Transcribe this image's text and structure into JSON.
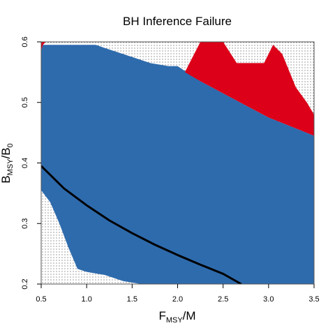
{
  "chart_data": {
    "type": "heatmap",
    "title": "BH Inference Failure",
    "xlabel": {
      "main": "F",
      "sub": "MSY",
      "tail": "/M"
    },
    "ylabel": {
      "main": "B",
      "sub": "MSY",
      "mid": "/B",
      "sub2": "0"
    },
    "xlim": [
      0.5,
      3.5
    ],
    "ylim": [
      0.2,
      0.6
    ],
    "xticks": [
      "0.5",
      "1.0",
      "1.5",
      "2.0",
      "2.5",
      "3.0",
      "3.5"
    ],
    "xtick_values": [
      0.5,
      1.0,
      1.5,
      2.0,
      2.5,
      3.0,
      3.5
    ],
    "yticks": [
      "0.2",
      "0.3",
      "0.4",
      "0.5",
      "0.6"
    ],
    "ytick_values": [
      0.2,
      0.3,
      0.4,
      0.5,
      0.6
    ],
    "grid": false,
    "colors": {
      "inference_failure_region": "#dc0019",
      "valid_region": "#2e6bad",
      "undefined_region_dots": "#000000",
      "curve": "#000000"
    },
    "regions": {
      "blue_upper_boundary": [
        [
          0.5,
          0.585
        ],
        [
          0.52,
          0.595
        ],
        [
          0.6,
          0.595
        ],
        [
          1.1,
          0.595
        ],
        [
          1.2,
          0.59
        ],
        [
          1.4,
          0.58
        ],
        [
          1.6,
          0.57
        ],
        [
          1.7,
          0.565
        ],
        [
          1.9,
          0.56
        ],
        [
          2.0,
          0.56
        ],
        [
          2.1,
          0.55
        ],
        [
          2.25,
          0.535
        ],
        [
          2.5,
          0.515
        ],
        [
          2.75,
          0.495
        ],
        [
          3.0,
          0.475
        ],
        [
          3.25,
          0.46
        ],
        [
          3.5,
          0.445
        ]
      ],
      "blue_lower_boundary": [
        [
          0.5,
          0.355
        ],
        [
          0.6,
          0.335
        ],
        [
          0.7,
          0.3
        ],
        [
          0.8,
          0.26
        ],
        [
          0.9,
          0.225
        ],
        [
          1.0,
          0.22
        ],
        [
          1.2,
          0.215
        ],
        [
          1.4,
          0.205
        ],
        [
          1.6,
          0.2
        ],
        [
          1.8,
          0.2
        ]
      ],
      "red_region_1": [
        [
          0.5,
          0.6
        ],
        [
          0.5,
          0.585
        ],
        [
          0.52,
          0.595
        ],
        [
          0.55,
          0.6
        ]
      ],
      "red_region_2": [
        [
          2.08,
          0.55
        ],
        [
          2.25,
          0.6
        ],
        [
          2.5,
          0.6
        ],
        [
          2.65,
          0.565
        ],
        [
          2.95,
          0.565
        ],
        [
          3.05,
          0.595
        ],
        [
          3.15,
          0.58
        ],
        [
          3.3,
          0.525
        ],
        [
          3.42,
          0.5
        ],
        [
          3.5,
          0.48
        ],
        [
          3.5,
          0.445
        ],
        [
          3.25,
          0.46
        ],
        [
          3.0,
          0.475
        ],
        [
          2.75,
          0.495
        ],
        [
          2.5,
          0.515
        ],
        [
          2.25,
          0.535
        ]
      ]
    },
    "curve": [
      [
        0.5,
        0.395
      ],
      [
        0.75,
        0.358
      ],
      [
        1.0,
        0.33
      ],
      [
        1.25,
        0.305
      ],
      [
        1.5,
        0.284
      ],
      [
        1.75,
        0.265
      ],
      [
        2.0,
        0.248
      ],
      [
        2.25,
        0.232
      ],
      [
        2.5,
        0.217
      ],
      [
        2.7,
        0.2
      ]
    ]
  }
}
